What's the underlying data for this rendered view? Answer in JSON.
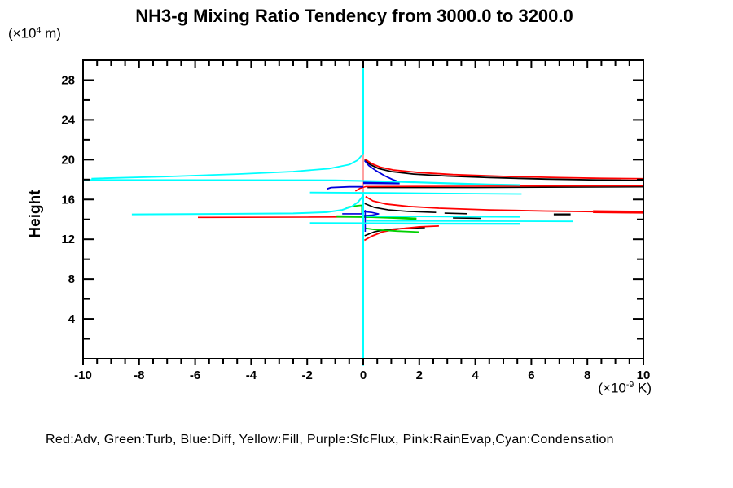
{
  "title": "NH3-g Mixing Ratio Tendency from 3000.0 to 3200.0",
  "y_axis": {
    "label": "Height",
    "unit_prefix": "(×10",
    "unit_exp": "4",
    "unit_suffix": " m)"
  },
  "x_axis": {
    "unit_prefix": "(×10",
    "unit_exp": "-9",
    "unit_suffix": " K)"
  },
  "footer_legend": "Red:Adv, Green:Turb, Blue:Diff, Yellow:Fill, Purple:SfcFlux, Pink:RainEvap,Cyan:Condensation",
  "chart_data": {
    "type": "line",
    "title": "NH3-g Mixing Ratio Tendency from 3000.0 to 3200.0",
    "xlabel": "(x10^-9 K)",
    "ylabel": "Height (x10^4 m)",
    "xlim": [
      -10,
      10
    ],
    "ylim": [
      0,
      30
    ],
    "x_ticks": [
      -10,
      -8,
      -6,
      -4,
      -2,
      0,
      2,
      4,
      6,
      8,
      10
    ],
    "x_minor_step": 0.5,
    "y_ticks": [
      4,
      8,
      12,
      16,
      20,
      24,
      28
    ],
    "y_minor_step": 2,
    "grid": false,
    "legend_position": "bottom-text-line",
    "legend_entries": [
      {
        "color_name": "Red",
        "label": "Adv",
        "hex": "#ff0000"
      },
      {
        "color_name": "Green",
        "label": "Turb",
        "hex": "#00d000"
      },
      {
        "color_name": "Blue",
        "label": "Diff",
        "hex": "#0000dd"
      },
      {
        "color_name": "Yellow",
        "label": "Fill",
        "hex": "#ffff00"
      },
      {
        "color_name": "Purple",
        "label": "SfcFlux",
        "hex": "#a000a0"
      },
      {
        "color_name": "Pink",
        "label": "RainEvap",
        "hex": "#ffa0a0"
      },
      {
        "color_name": "Cyan",
        "label": "Condensation",
        "hex": "#00ffff"
      }
    ],
    "series": [
      {
        "name": "RainEvap",
        "color": "#ffa0a0",
        "segments": [
          {
            "w": 2.0,
            "pts": [
              [
                0,
                20.6
              ],
              [
                0,
                16.5
              ]
            ]
          }
        ]
      },
      {
        "name": "black",
        "color": "#000000",
        "segments": [
          {
            "w": 1.8,
            "pts": [
              [
                0.05,
                20.0
              ],
              [
                0.25,
                19.5
              ],
              [
                0.55,
                19.1
              ],
              [
                1,
                18.8
              ],
              [
                1.8,
                18.55
              ],
              [
                3,
                18.35
              ],
              [
                4.5,
                18.2
              ],
              [
                6.5,
                18.05
              ],
              [
                8.5,
                17.95
              ],
              [
                10,
                17.9
              ]
            ]
          },
          {
            "w": 1.5,
            "pts": [
              [
                0.15,
                17.2
              ],
              [
                4,
                17.2
              ],
              [
                10,
                17.27
              ]
            ]
          },
          {
            "w": 1.6,
            "pts": [
              [
                0.05,
                15.6
              ],
              [
                0.4,
                15.2
              ],
              [
                0.9,
                14.95
              ],
              [
                1.6,
                14.8
              ],
              [
                2.6,
                14.7
              ]
            ]
          },
          {
            "w": 1.6,
            "pts": [
              [
                2.9,
                14.62
              ],
              [
                3.7,
                14.57
              ]
            ]
          },
          {
            "w": 1.6,
            "pts": [
              [
                3.2,
                14.15
              ],
              [
                4.2,
                14.1
              ]
            ]
          },
          {
            "w": 2.2,
            "pts": [
              [
                6.8,
                14.5
              ],
              [
                7.4,
                14.5
              ]
            ]
          },
          {
            "w": 1.6,
            "pts": [
              [
                0.05,
                12.35
              ],
              [
                0.4,
                12.75
              ],
              [
                0.9,
                13.0
              ],
              [
                1.6,
                13.12
              ],
              [
                2.2,
                13.17
              ]
            ]
          }
        ]
      },
      {
        "name": "Adv",
        "color": "#ff0000",
        "segments": [
          {
            "w": 1.8,
            "pts": [
              [
                0.07,
                20.05
              ],
              [
                0.3,
                19.6
              ],
              [
                0.6,
                19.25
              ],
              [
                1.1,
                18.95
              ],
              [
                2,
                18.7
              ],
              [
                3.2,
                18.5
              ],
              [
                5,
                18.32
              ],
              [
                7,
                18.2
              ],
              [
                8.5,
                18.12
              ],
              [
                10,
                18.08
              ]
            ]
          },
          {
            "w": 1.6,
            "pts": [
              [
                -0.28,
                16.85
              ],
              [
                -0.12,
                17.12
              ],
              [
                0.1,
                17.3
              ],
              [
                4,
                17.33
              ],
              [
                10,
                17.38
              ]
            ]
          },
          {
            "w": 1.6,
            "pts": [
              [
                -5.9,
                14.2
              ],
              [
                -2,
                14.22
              ],
              [
                0,
                14.25
              ]
            ]
          },
          {
            "w": 1.8,
            "pts": [
              [
                0.08,
                16.3
              ],
              [
                0.35,
                15.85
              ],
              [
                0.8,
                15.55
              ],
              [
                1.6,
                15.3
              ],
              [
                2.7,
                15.12
              ],
              [
                4.5,
                14.95
              ],
              [
                6.5,
                14.84
              ],
              [
                8.2,
                14.78
              ]
            ]
          },
          {
            "w": 3.5,
            "pts": [
              [
                8.2,
                14.78
              ],
              [
                10,
                14.72
              ]
            ]
          },
          {
            "w": 1.8,
            "pts": [
              [
                0.04,
                11.9
              ],
              [
                0.3,
                12.3
              ],
              [
                0.7,
                12.75
              ],
              [
                1.3,
                13.05
              ],
              [
                2,
                13.25
              ],
              [
                2.7,
                13.33
              ]
            ]
          }
        ]
      },
      {
        "name": "Turb",
        "color": "#00d000",
        "segments": [
          {
            "w": 1.8,
            "pts": [
              [
                -0.62,
                15.2
              ],
              [
                -0.35,
                15.33
              ],
              [
                -0.12,
                15.4
              ],
              [
                0,
                15.42
              ]
            ]
          },
          {
            "w": 2.8,
            "pts": [
              [
                -0.95,
                14.3
              ],
              [
                0.3,
                14.26
              ],
              [
                1,
                14.18
              ],
              [
                1.9,
                14.06
              ]
            ]
          },
          {
            "w": 1.8,
            "pts": [
              [
                0.06,
                13.1
              ],
              [
                0.5,
                12.95
              ],
              [
                1.2,
                12.82
              ],
              [
                2,
                12.72
              ]
            ]
          },
          {
            "w": 1.6,
            "pts": [
              [
                -0.05,
                15.45
              ],
              [
                -0.05,
                14.6
              ]
            ]
          }
        ]
      },
      {
        "name": "Diff",
        "color": "#0000dd",
        "segments": [
          {
            "w": 1.8,
            "pts": [
              [
                0.05,
                19.9
              ],
              [
                0.2,
                19.4
              ],
              [
                0.45,
                18.9
              ],
              [
                0.75,
                18.4
              ],
              [
                1.05,
                18.0
              ],
              [
                1.3,
                17.75
              ]
            ]
          },
          {
            "w": 3.2,
            "pts": [
              [
                0,
                17.68
              ],
              [
                1.3,
                17.66
              ]
            ]
          },
          {
            "w": 1.8,
            "pts": [
              [
                -1.3,
                17.05
              ],
              [
                -1.15,
                17.2
              ],
              [
                -0.5,
                17.27
              ],
              [
                0,
                17.27
              ]
            ]
          },
          {
            "w": 1.6,
            "pts": [
              [
                0,
                14.78
              ],
              [
                0.3,
                14.7
              ],
              [
                0.55,
                14.55
              ],
              [
                0.3,
                14.42
              ],
              [
                0,
                14.37
              ]
            ]
          },
          {
            "w": 1.6,
            "pts": [
              [
                -0.75,
                14.56
              ],
              [
                0,
                14.56
              ]
            ]
          },
          {
            "w": 1.6,
            "pts": [
              [
                0.07,
                14.95
              ],
              [
                0.07,
                12.75
              ]
            ]
          }
        ]
      },
      {
        "name": "Condensation",
        "color": "#00ffff",
        "segments": [
          {
            "w": 2.0,
            "pts": [
              [
                0,
                30
              ],
              [
                0,
                20.6
              ]
            ]
          },
          {
            "w": 1.8,
            "pts": [
              [
                -9.7,
                18.1
              ],
              [
                -7,
                18.3
              ],
              [
                -4.5,
                18.55
              ],
              [
                -2.5,
                18.8
              ],
              [
                -1.2,
                19.1
              ],
              [
                -0.5,
                19.5
              ],
              [
                -0.2,
                19.95
              ],
              [
                0,
                20.6
              ]
            ]
          },
          {
            "w": 2.2,
            "pts": [
              [
                -10,
                17.95
              ],
              [
                -1,
                17.92
              ],
              [
                1,
                17.8
              ],
              [
                3,
                17.62
              ],
              [
                4.5,
                17.5
              ],
              [
                5.6,
                17.45
              ]
            ]
          },
          {
            "w": 1.8,
            "pts": [
              [
                -1.9,
                16.7
              ],
              [
                1,
                16.65
              ],
              [
                3,
                16.6
              ],
              [
                5.65,
                16.55
              ]
            ]
          },
          {
            "w": 2.0,
            "pts": [
              [
                -8.26,
                14.5
              ],
              [
                -5,
                14.55
              ],
              [
                -2.5,
                14.6
              ],
              [
                -1.3,
                14.72
              ],
              [
                -0.75,
                14.95
              ],
              [
                -0.4,
                15.3
              ],
              [
                -0.18,
                15.75
              ],
              [
                -0.05,
                16.2
              ],
              [
                0,
                16.5
              ]
            ]
          },
          {
            "w": 1.8,
            "pts": [
              [
                0.1,
                14.32
              ],
              [
                3,
                14.28
              ],
              [
                5.6,
                14.25
              ]
            ]
          },
          {
            "w": 1.8,
            "pts": [
              [
                0.1,
                13.85
              ],
              [
                4,
                13.82
              ],
              [
                7.5,
                13.8
              ]
            ]
          },
          {
            "w": 2.4,
            "pts": [
              [
                -1.9,
                13.62
              ],
              [
                2,
                13.58
              ],
              [
                5.6,
                13.55
              ]
            ]
          },
          {
            "w": 2.0,
            "pts": [
              [
                0,
                16.5
              ],
              [
                0,
                -0.7
              ]
            ]
          }
        ]
      }
    ]
  }
}
